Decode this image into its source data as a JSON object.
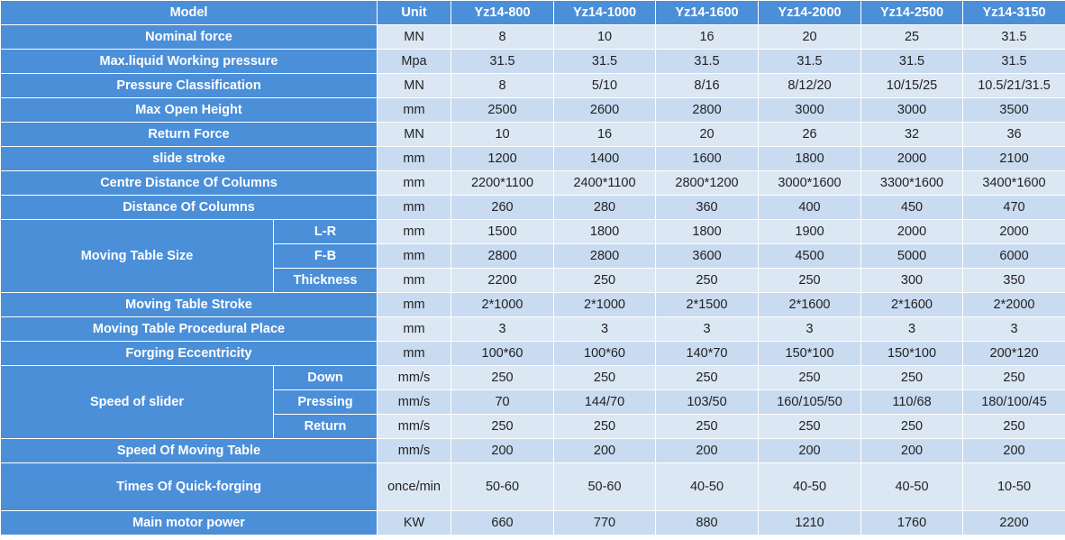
{
  "header": {
    "model": "Model",
    "unit": "Unit",
    "models": [
      "Yz14-800",
      "Yz14-1000",
      "Yz14-1600",
      "Yz14-2000",
      "Yz14-2500",
      "Yz14-3150"
    ]
  },
  "rows": [
    {
      "label": "Nominal force",
      "unit": "MN",
      "values": [
        "8",
        "10",
        "16",
        "20",
        "25",
        "31.5"
      ]
    },
    {
      "label": "Max.liquid Working pressure",
      "unit": "Mpa",
      "values": [
        "31.5",
        "31.5",
        "31.5",
        "31.5",
        "31.5",
        "31.5"
      ]
    },
    {
      "label": "Pressure Classification",
      "unit": "MN",
      "values": [
        "8",
        "5/10",
        "8/16",
        "8/12/20",
        "10/15/25",
        "10.5/21/31.5"
      ]
    },
    {
      "label": "Max Open Height",
      "unit": "mm",
      "values": [
        "2500",
        "2600",
        "2800",
        "3000",
        "3000",
        "3500"
      ]
    },
    {
      "label": "Return Force",
      "unit": "MN",
      "values": [
        "10",
        "16",
        "20",
        "26",
        "32",
        "36"
      ]
    },
    {
      "label": "slide stroke",
      "unit": "mm",
      "values": [
        "1200",
        "1400",
        "1600",
        "1800",
        "2000",
        "2100"
      ]
    },
    {
      "label": "Centre Distance Of Columns",
      "unit": "mm",
      "values": [
        "2200*1100",
        "2400*1100",
        "2800*1200",
        "3000*1600",
        "3300*1600",
        "3400*1600"
      ]
    },
    {
      "label": "Distance Of Columns",
      "unit": "mm",
      "values": [
        "260",
        "280",
        "360",
        "400",
        "450",
        "470"
      ]
    },
    {
      "label": "Moving Table Size",
      "subrows": [
        {
          "label": "L-R",
          "unit": "mm",
          "values": [
            "1500",
            "1800",
            "1800",
            "1900",
            "2000",
            "2000"
          ]
        },
        {
          "label": "F-B",
          "unit": "mm",
          "values": [
            "2800",
            "2800",
            "3600",
            "4500",
            "5000",
            "6000"
          ]
        },
        {
          "label": "Thickness",
          "unit": "mm",
          "values": [
            "2200",
            "250",
            "250",
            "250",
            "300",
            "350"
          ]
        }
      ]
    },
    {
      "label": "Moving Table Stroke",
      "unit": "mm",
      "values": [
        "2*1000",
        "2*1000",
        "2*1500",
        "2*1600",
        "2*1600",
        "2*2000"
      ]
    },
    {
      "label": "Moving Table Procedural Place",
      "unit": "mm",
      "values": [
        "3",
        "3",
        "3",
        "3",
        "3",
        "3"
      ]
    },
    {
      "label": "Forging Eccentricity",
      "unit": "mm",
      "values": [
        "100*60",
        "100*60",
        "140*70",
        "150*100",
        "150*100",
        "200*120"
      ]
    },
    {
      "label": "Speed of slider",
      "subrows": [
        {
          "label": "Down",
          "unit": "mm/s",
          "values": [
            "250",
            "250",
            "250",
            "250",
            "250",
            "250"
          ]
        },
        {
          "label": "Pressing",
          "unit": "mm/s",
          "values": [
            "70",
            "144/70",
            "103/50",
            "160/105/50",
            "110/68",
            "180/100/45"
          ]
        },
        {
          "label": "Return",
          "unit": "mm/s",
          "values": [
            "250",
            "250",
            "250",
            "250",
            "250",
            "250"
          ]
        }
      ]
    },
    {
      "label": "Speed Of Moving Table",
      "unit": "mm/s",
      "values": [
        "200",
        "200",
        "200",
        "200",
        "200",
        "200"
      ]
    },
    {
      "label": "Times Of Quick-forging",
      "unit": "once/min",
      "values": [
        "50-60",
        "50-60",
        "40-50",
        "40-50",
        "40-50",
        "10-50"
      ]
    },
    {
      "label": "Main motor power",
      "unit": "KW",
      "values": [
        "660",
        "770",
        "880",
        "1210",
        "1760",
        "2200"
      ]
    }
  ]
}
